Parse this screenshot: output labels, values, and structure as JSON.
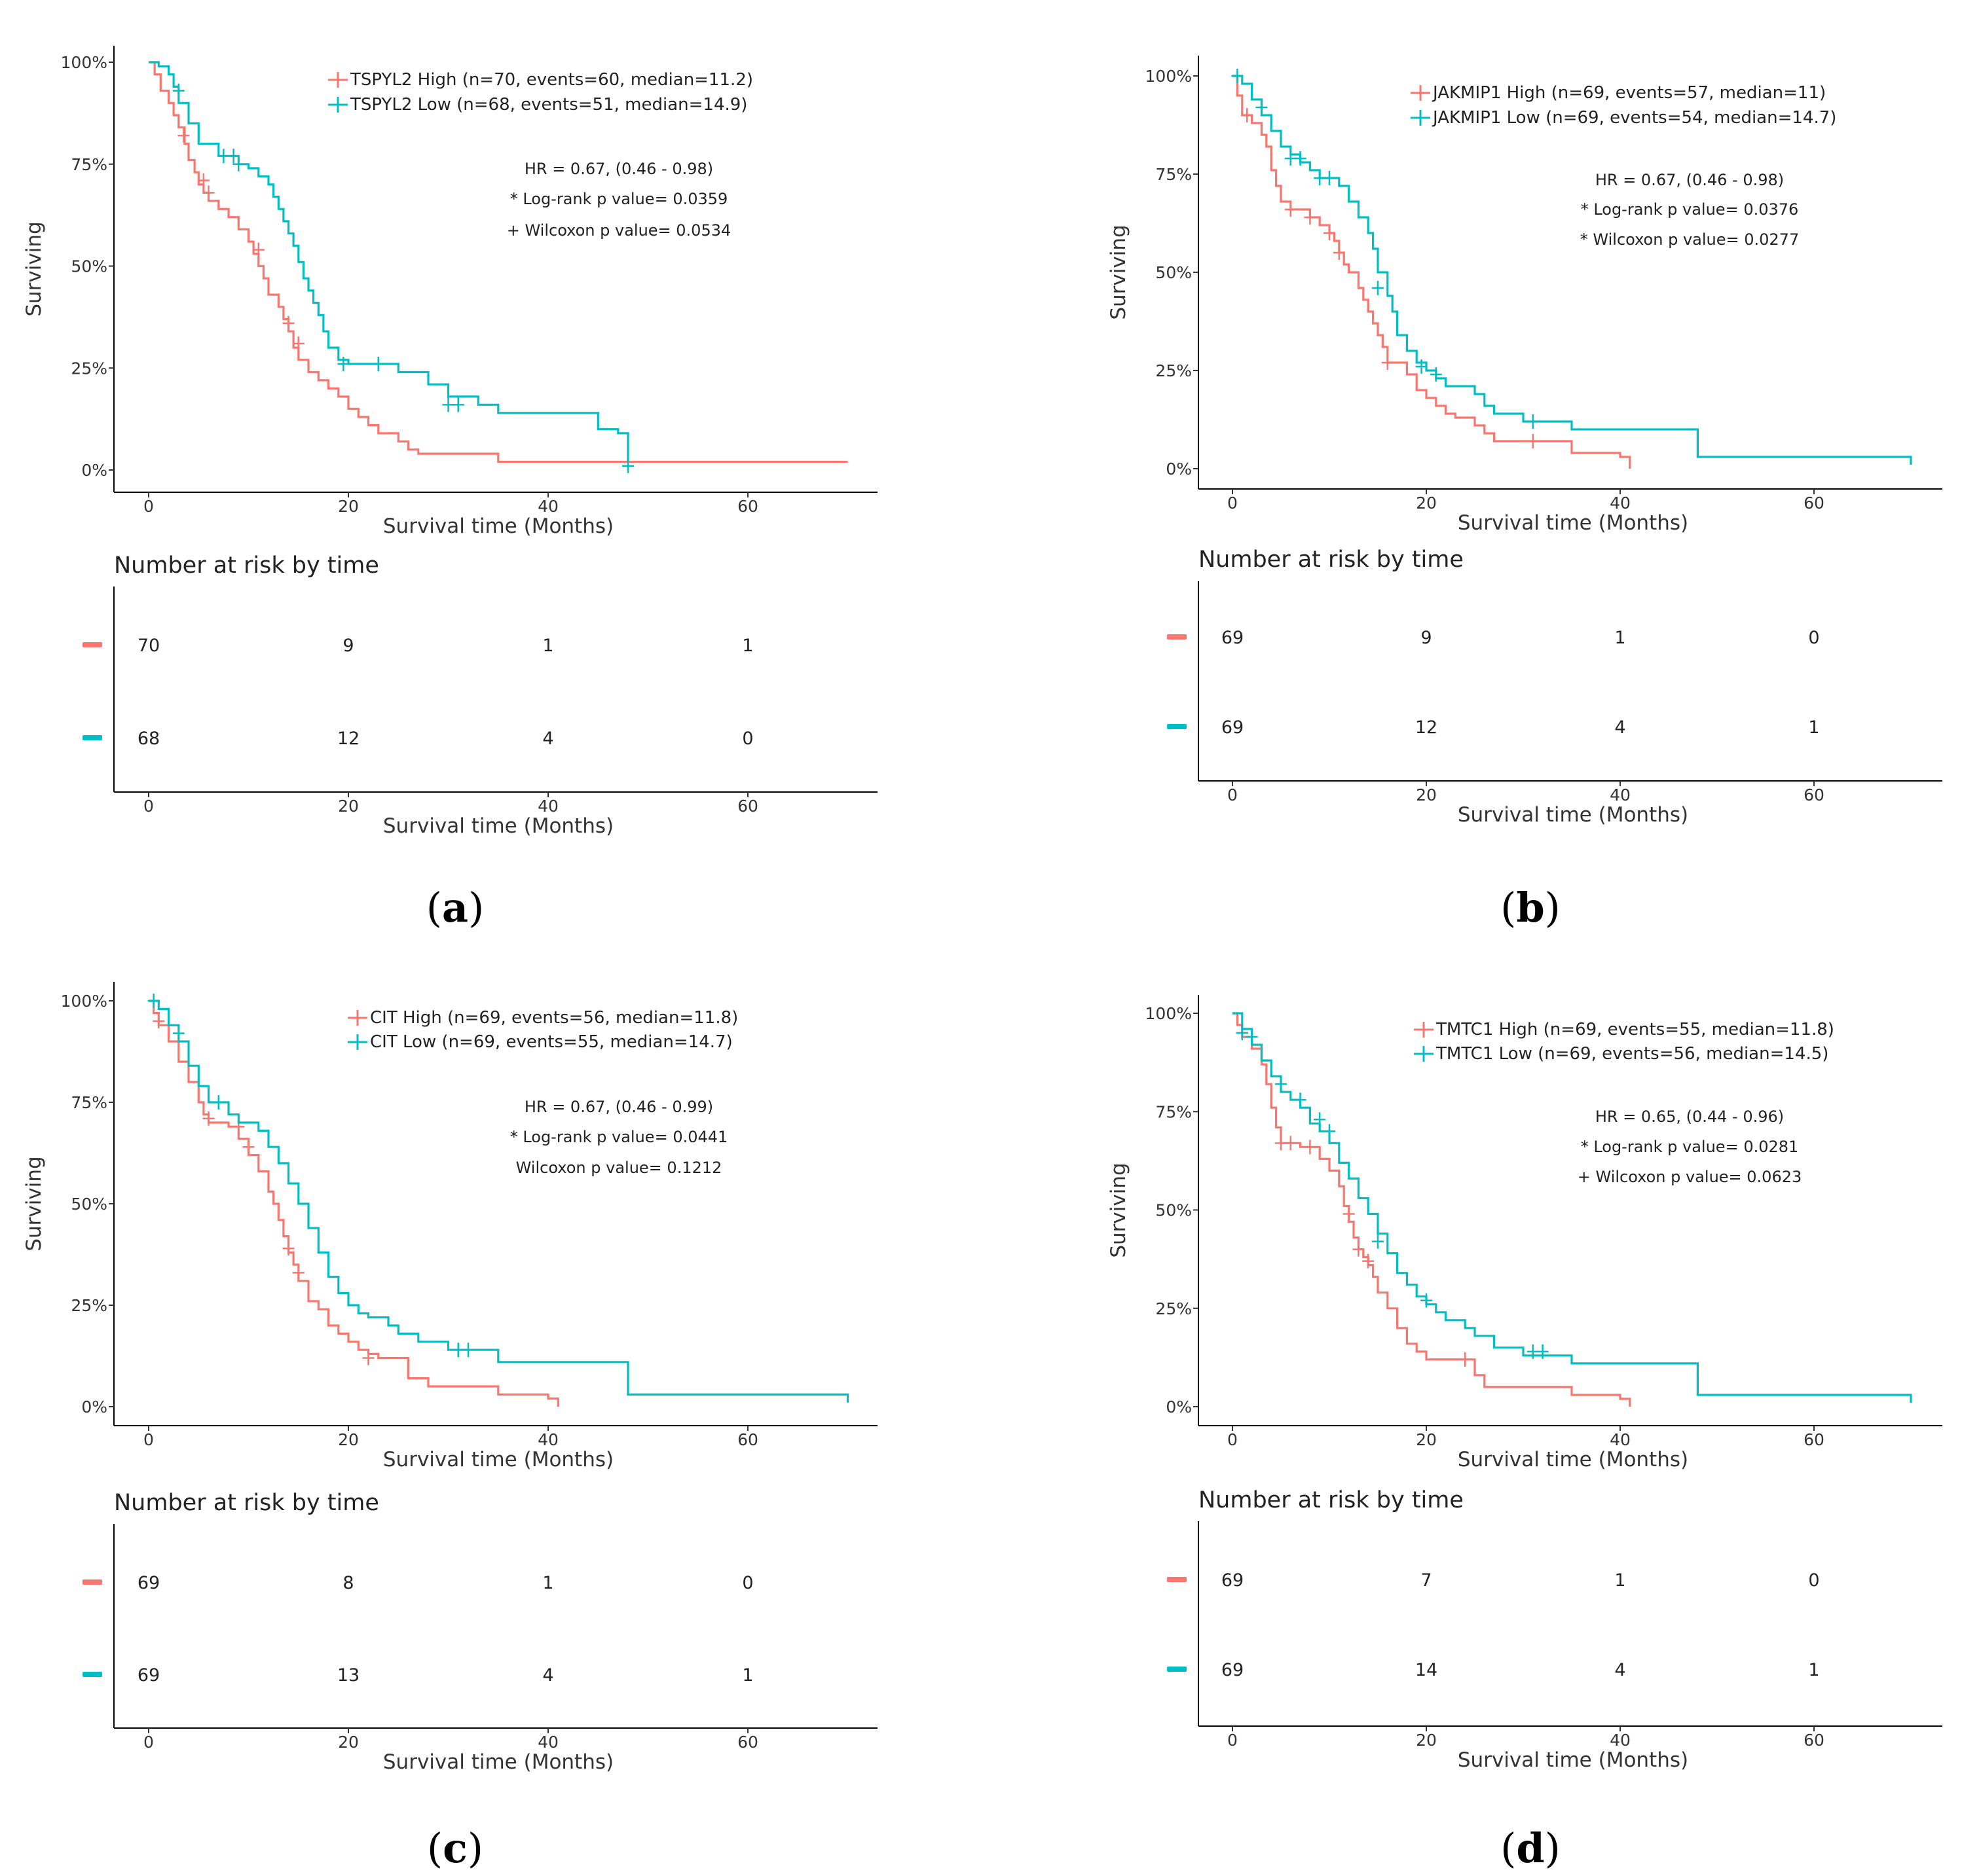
{
  "colors": {
    "high": "#f8766d",
    "low": "#00bfc4",
    "axis": "#000000"
  },
  "common": {
    "y_ticks": [
      "0%",
      "25%",
      "50%",
      "75%",
      "100%"
    ],
    "x_ticks": [
      "0",
      "20",
      "40",
      "60"
    ],
    "ylabel": "Surviving",
    "xlabel": "Survival time (Months)",
    "risk_title": "Number at risk by time"
  },
  "chart_data": [
    {
      "type": "line",
      "panel": "a",
      "title": "",
      "xlabel": "Survival time (Months)",
      "ylabel": "Surviving",
      "xlim": [
        -3.4,
        73.5
      ],
      "ylim": [
        0,
        1
      ],
      "series": [
        {
          "name": "TSPYL2 High",
          "legend": "TSPYL2 High (n=70, events=60, median=11.2)",
          "x": [
            0,
            0.6,
            1.2,
            2,
            2.5,
            3,
            3.6,
            4,
            4.6,
            5,
            5.5,
            6,
            7,
            8,
            9,
            10,
            10.5,
            11,
            11.5,
            12,
            13,
            13.5,
            14,
            14.5,
            15,
            16,
            17,
            18,
            19,
            20,
            21,
            22,
            23,
            24,
            25,
            26,
            27,
            28,
            30,
            35,
            37,
            40,
            45,
            50,
            55,
            60,
            65,
            70
          ],
          "y": [
            1,
            0.97,
            0.93,
            0.9,
            0.87,
            0.84,
            0.8,
            0.76,
            0.73,
            0.7,
            0.68,
            0.66,
            0.64,
            0.62,
            0.59,
            0.56,
            0.53,
            0.5,
            0.47,
            0.43,
            0.4,
            0.37,
            0.34,
            0.3,
            0.27,
            0.24,
            0.22,
            0.2,
            0.18,
            0.15,
            0.13,
            0.11,
            0.09,
            0.09,
            0.07,
            0.05,
            0.04,
            0.04,
            0.04,
            0.02,
            0.02,
            0.02,
            0.02,
            0.02,
            0.02,
            0.02,
            0.02,
            0.02
          ],
          "censor": [
            [
              3.5,
              0.82
            ],
            [
              5.5,
              0.71
            ],
            [
              6,
              0.68
            ],
            [
              11,
              0.54
            ],
            [
              14,
              0.36
            ],
            [
              15,
              0.31
            ]
          ]
        },
        {
          "name": "TSPYL2 Low",
          "legend": "TSPYL2 Low (n=68, events=51, median=14.9)",
          "x": [
            0,
            1,
            2,
            2.5,
            3,
            4,
            5,
            7,
            8,
            9,
            10,
            11,
            12,
            12.5,
            13,
            13.5,
            14,
            14.5,
            15,
            15.5,
            16,
            16.5,
            17,
            17.5,
            18,
            19,
            20,
            22,
            25,
            28,
            30,
            33,
            35,
            40,
            45,
            47,
            48
          ],
          "y": [
            1,
            0.99,
            0.97,
            0.94,
            0.9,
            0.85,
            0.8,
            0.77,
            0.77,
            0.75,
            0.74,
            0.72,
            0.7,
            0.67,
            0.64,
            0.61,
            0.58,
            0.55,
            0.51,
            0.47,
            0.44,
            0.41,
            0.38,
            0.34,
            0.3,
            0.27,
            0.26,
            0.26,
            0.24,
            0.21,
            0.18,
            0.16,
            0.14,
            0.14,
            0.1,
            0.09,
            0.02
          ],
          "censor": [
            [
              3,
              0.93
            ],
            [
              7.5,
              0.77
            ],
            [
              8.5,
              0.77
            ],
            [
              9,
              0.75
            ],
            [
              19.5,
              0.26
            ],
            [
              23,
              0.26
            ],
            [
              30,
              0.16
            ],
            [
              31,
              0.16
            ],
            [
              48,
              0.01
            ]
          ]
        }
      ],
      "stats": [
        "HR = 0.67, (0.46 - 0.98)",
        "* Log-rank p value= 0.0359",
        "+ Wilcoxon p value= 0.0534"
      ],
      "risk_table": {
        "times": [
          "0",
          "20",
          "40",
          "60"
        ],
        "high": [
          "70",
          "9",
          "1",
          "1"
        ],
        "low": [
          "68",
          "12",
          "4",
          "0"
        ]
      },
      "label": {
        "open": "(",
        "letter": "a",
        "close": ")"
      }
    },
    {
      "type": "line",
      "panel": "b",
      "title": "",
      "xlabel": "Survival time (Months)",
      "ylabel": "Surviving",
      "xlim": [
        -3.4,
        73.5
      ],
      "ylim": [
        0,
        1
      ],
      "series": [
        {
          "name": "JAKMIP1 High",
          "legend": "JAKMIP1 High (n=69, events=57, median=11)",
          "x": [
            0,
            0.5,
            1,
            2,
            3,
            3.5,
            4,
            4.5,
            5,
            6,
            7,
            8,
            9,
            10,
            10.5,
            11,
            11.5,
            12,
            13,
            13.5,
            14,
            14.5,
            15,
            15.5,
            16,
            17,
            18,
            19,
            20,
            21,
            22,
            23,
            25,
            26,
            27,
            30,
            35,
            36,
            40,
            41
          ],
          "y": [
            1,
            0.95,
            0.9,
            0.88,
            0.85,
            0.82,
            0.76,
            0.72,
            0.68,
            0.66,
            0.66,
            0.64,
            0.62,
            0.6,
            0.58,
            0.55,
            0.52,
            0.5,
            0.46,
            0.43,
            0.4,
            0.37,
            0.34,
            0.31,
            0.27,
            0.27,
            0.24,
            0.2,
            0.18,
            0.16,
            0.14,
            0.13,
            0.11,
            0.09,
            0.07,
            0.07,
            0.04,
            0.04,
            0.03,
            0
          ],
          "censor": [
            [
              1.5,
              0.9
            ],
            [
              6,
              0.66
            ],
            [
              8,
              0.64
            ],
            [
              10,
              0.6
            ],
            [
              11,
              0.55
            ],
            [
              16,
              0.27
            ],
            [
              31,
              0.07
            ]
          ]
        },
        {
          "name": "JAKMIP1 Low",
          "legend": "JAKMIP1 Low (n=69, events=54, median=14.7)",
          "x": [
            0,
            1,
            2,
            3,
            4,
            5,
            6,
            7,
            8,
            9,
            10,
            11,
            12,
            13,
            14,
            14.5,
            15,
            16,
            16.5,
            17,
            18,
            19,
            20,
            21,
            22,
            23,
            25,
            26,
            27,
            30,
            33,
            35,
            40,
            45,
            47,
            48,
            50,
            55,
            60,
            65,
            70
          ],
          "y": [
            1,
            0.98,
            0.94,
            0.9,
            0.86,
            0.82,
            0.8,
            0.78,
            0.76,
            0.74,
            0.74,
            0.72,
            0.68,
            0.64,
            0.6,
            0.56,
            0.5,
            0.44,
            0.4,
            0.34,
            0.3,
            0.27,
            0.25,
            0.23,
            0.21,
            0.21,
            0.19,
            0.16,
            0.14,
            0.12,
            0.12,
            0.1,
            0.1,
            0.1,
            0.1,
            0.03,
            0.03,
            0.03,
            0.03,
            0.03,
            0.01
          ],
          "censor": [
            [
              0.5,
              1
            ],
            [
              3,
              0.92
            ],
            [
              6,
              0.79
            ],
            [
              7,
              0.79
            ],
            [
              9,
              0.74
            ],
            [
              10,
              0.74
            ],
            [
              15,
              0.46
            ],
            [
              19.5,
              0.26
            ],
            [
              21,
              0.24
            ],
            [
              31,
              0.12
            ]
          ]
        }
      ],
      "stats": [
        "HR = 0.67, (0.46 - 0.98)",
        "* Log-rank p value= 0.0376",
        "* Wilcoxon p value= 0.0277"
      ],
      "risk_table": {
        "times": [
          "0",
          "20",
          "40",
          "60"
        ],
        "high": [
          "69",
          "9",
          "1",
          "0"
        ],
        "low": [
          "69",
          "12",
          "4",
          "1"
        ]
      },
      "label": {
        "open": "(",
        "letter": "b",
        "close": ")"
      }
    },
    {
      "type": "line",
      "panel": "c",
      "title": "",
      "xlabel": "Survival time (Months)",
      "ylabel": "Surviving",
      "xlim": [
        -3.4,
        73.5
      ],
      "ylim": [
        0,
        1
      ],
      "series": [
        {
          "name": "CIT High",
          "legend": "CIT High (n=69, events=56, median=11.8)",
          "x": [
            0,
            0.5,
            1,
            2,
            3,
            4,
            5,
            5.5,
            6,
            7,
            8,
            9,
            10,
            11,
            12,
            12.5,
            13,
            13.5,
            14,
            14.5,
            15,
            16,
            17,
            18,
            19,
            20,
            21,
            22,
            23,
            25,
            26,
            28,
            30,
            35,
            38,
            40,
            41
          ],
          "y": [
            1,
            0.97,
            0.94,
            0.9,
            0.85,
            0.8,
            0.75,
            0.72,
            0.7,
            0.7,
            0.69,
            0.66,
            0.62,
            0.58,
            0.53,
            0.5,
            0.46,
            0.42,
            0.38,
            0.35,
            0.31,
            0.26,
            0.24,
            0.2,
            0.18,
            0.16,
            0.14,
            0.13,
            0.12,
            0.12,
            0.07,
            0.05,
            0.05,
            0.03,
            0.03,
            0.02,
            0
          ],
          "censor": [
            [
              1,
              0.95
            ],
            [
              6,
              0.71
            ],
            [
              9,
              0.69
            ],
            [
              10,
              0.64
            ],
            [
              14,
              0.39
            ],
            [
              15,
              0.33
            ],
            [
              22,
              0.12
            ]
          ]
        },
        {
          "name": "CIT Low",
          "legend": "CIT Low (n=69, events=55, median=14.7)",
          "x": [
            0,
            1,
            2,
            3,
            4,
            5,
            6,
            7,
            8,
            9,
            10,
            11,
            12,
            13,
            14,
            15,
            16,
            17,
            18,
            19,
            20,
            21,
            22,
            24,
            25,
            27,
            30,
            35,
            40,
            45,
            47,
            48,
            50,
            55,
            60,
            65,
            70
          ],
          "y": [
            1,
            0.98,
            0.94,
            0.9,
            0.84,
            0.79,
            0.75,
            0.75,
            0.72,
            0.7,
            0.7,
            0.68,
            0.64,
            0.6,
            0.55,
            0.5,
            0.44,
            0.38,
            0.32,
            0.28,
            0.25,
            0.23,
            0.22,
            0.2,
            0.18,
            0.16,
            0.14,
            0.11,
            0.11,
            0.11,
            0.11,
            0.03,
            0.03,
            0.03,
            0.03,
            0.03,
            0.01
          ],
          "censor": [
            [
              0.5,
              1
            ],
            [
              3,
              0.92
            ],
            [
              7,
              0.75
            ],
            [
              31,
              0.14
            ],
            [
              32,
              0.14
            ]
          ]
        }
      ],
      "stats": [
        "HR = 0.67, (0.46 - 0.99)",
        "* Log-rank p value= 0.0441",
        "Wilcoxon p value= 0.1212"
      ],
      "risk_table": {
        "times": [
          "0",
          "20",
          "40",
          "60"
        ],
        "high": [
          "69",
          "8",
          "1",
          "0"
        ],
        "low": [
          "69",
          "13",
          "4",
          "1"
        ]
      },
      "label": {
        "open": "(",
        "letter": "c",
        "close": ")"
      }
    },
    {
      "type": "line",
      "panel": "d",
      "title": "",
      "xlabel": "Survival time (Months)",
      "ylabel": "Surviving",
      "xlim": [
        -3.4,
        73.5
      ],
      "ylim": [
        0,
        1
      ],
      "series": [
        {
          "name": "TMTC1 High",
          "legend": "TMTC1 High (n=69, events=55, median=11.8)",
          "x": [
            0,
            0.5,
            1,
            2,
            3,
            3.5,
            4,
            4.5,
            5,
            6,
            7,
            8,
            9,
            10,
            11,
            11.5,
            12,
            12.5,
            13,
            13.5,
            14,
            14.5,
            15,
            16,
            17,
            18,
            19,
            20,
            22,
            25,
            26,
            28,
            30,
            35,
            38,
            40,
            41
          ],
          "y": [
            1,
            0.97,
            0.94,
            0.91,
            0.87,
            0.82,
            0.76,
            0.71,
            0.67,
            0.67,
            0.66,
            0.66,
            0.63,
            0.6,
            0.56,
            0.51,
            0.47,
            0.43,
            0.4,
            0.38,
            0.36,
            0.33,
            0.29,
            0.25,
            0.2,
            0.16,
            0.14,
            0.12,
            0.12,
            0.08,
            0.05,
            0.05,
            0.05,
            0.03,
            0.03,
            0.02,
            0
          ],
          "censor": [
            [
              1,
              0.95
            ],
            [
              5,
              0.67
            ],
            [
              6,
              0.67
            ],
            [
              8,
              0.66
            ],
            [
              12,
              0.49
            ],
            [
              13,
              0.4
            ],
            [
              14,
              0.37
            ],
            [
              24,
              0.12
            ]
          ]
        },
        {
          "name": "TMTC1 Low",
          "legend": "TMTC1 Low (n=69, events=56, median=14.5)",
          "x": [
            0,
            1,
            2,
            3,
            4,
            5,
            6,
            7,
            8,
            9,
            10,
            11,
            12,
            13,
            14,
            15,
            16,
            17,
            18,
            19,
            20,
            21,
            22,
            24,
            25,
            27,
            30,
            35,
            40,
            45,
            47,
            48,
            50,
            55,
            60,
            65,
            70
          ],
          "y": [
            1,
            0.96,
            0.92,
            0.88,
            0.84,
            0.8,
            0.78,
            0.76,
            0.72,
            0.7,
            0.67,
            0.62,
            0.58,
            0.53,
            0.49,
            0.44,
            0.39,
            0.34,
            0.31,
            0.28,
            0.26,
            0.24,
            0.22,
            0.2,
            0.18,
            0.15,
            0.13,
            0.11,
            0.11,
            0.11,
            0.11,
            0.03,
            0.03,
            0.03,
            0.03,
            0.03,
            0.01
          ],
          "censor": [
            [
              1,
              0.95
            ],
            [
              2,
              0.94
            ],
            [
              5,
              0.82
            ],
            [
              7,
              0.78
            ],
            [
              9,
              0.73
            ],
            [
              10,
              0.7
            ],
            [
              15,
              0.42
            ],
            [
              20,
              0.27
            ],
            [
              31,
              0.14
            ],
            [
              32,
              0.14
            ]
          ]
        }
      ],
      "stats": [
        "HR = 0.65, (0.44 - 0.96)",
        "* Log-rank p value= 0.0281",
        "+ Wilcoxon p value= 0.0623"
      ],
      "risk_table": {
        "times": [
          "0",
          "20",
          "40",
          "60"
        ],
        "high": [
          "69",
          "7",
          "1",
          "0"
        ],
        "low": [
          "69",
          "14",
          "4",
          "1"
        ]
      },
      "label": {
        "open": "(",
        "letter": "d",
        "close": ")"
      }
    }
  ]
}
